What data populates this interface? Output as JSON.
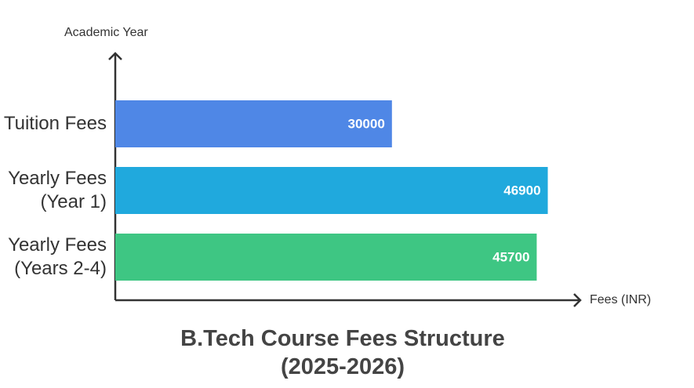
{
  "chart_data": {
    "type": "bar",
    "orientation": "horizontal",
    "title": "B.Tech Course Fees Structure (2025-2026)",
    "y_label": "Academic Year",
    "x_label": "Fees (INR)",
    "categories": [
      "Tuition Fees",
      "Yearly Fees (Year 1)",
      "Yearly Fees (Years 2-4)"
    ],
    "values": [
      30000,
      46900,
      45700
    ],
    "colors": [
      "#4f87e6",
      "#20a9dd",
      "#3ec683"
    ],
    "xlim": [
      0,
      50000
    ]
  }
}
